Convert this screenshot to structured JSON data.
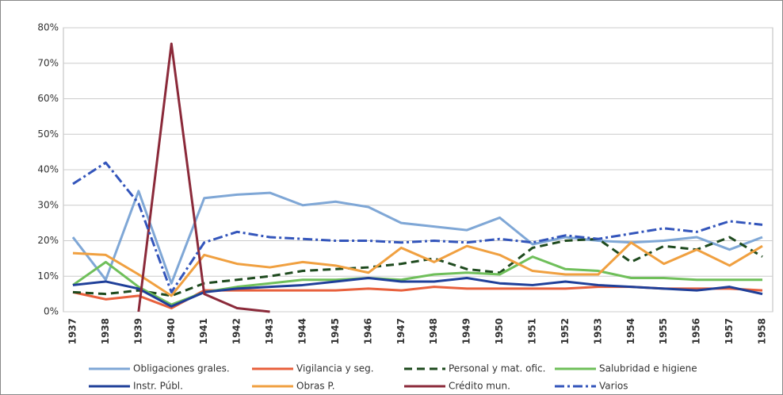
{
  "chart_data": {
    "type": "line",
    "categories": [
      "1937",
      "1938",
      "1939",
      "1940",
      "1941",
      "1942",
      "1943",
      "1944",
      "1945",
      "1946",
      "1947",
      "1948",
      "1949",
      "1950",
      "1951",
      "1952",
      "1953",
      "1954",
      "1955",
      "1956",
      "1957",
      "1958"
    ],
    "ylim": [
      0,
      80
    ],
    "yticks": [
      {
        "value": 0,
        "label": "0%"
      },
      {
        "value": 10,
        "label": "10%"
      },
      {
        "value": 20,
        "label": "20%"
      },
      {
        "value": 30,
        "label": "30%"
      },
      {
        "value": 40,
        "label": "40%"
      },
      {
        "value": 50,
        "label": "50%"
      },
      {
        "value": 60,
        "label": "60%"
      },
      {
        "value": 70,
        "label": "70%"
      },
      {
        "value": 80,
        "label": "80%"
      }
    ],
    "grid": true,
    "legend": "bottom",
    "series": [
      {
        "name": "Obligaciones grales.",
        "color": "#7fa7d6",
        "style": "solid",
        "values": [
          21,
          9,
          34,
          8,
          32,
          33,
          33.5,
          30,
          31,
          29.5,
          25,
          24,
          23,
          26.5,
          19,
          21,
          20,
          19.5,
          20,
          21,
          17.5,
          21
        ]
      },
      {
        "name": "Vigilancia y seg.",
        "color": "#e8603c",
        "style": "solid",
        "values": [
          5.5,
          3.5,
          4.5,
          1,
          6,
          6,
          6,
          6,
          6,
          6.5,
          6,
          7,
          6.5,
          6.5,
          6.5,
          6.5,
          7,
          7,
          6.5,
          6.5,
          6.5,
          6
        ]
      },
      {
        "name": "Personal y mat. ofic.",
        "color": "#1e4a1e",
        "style": "dashed",
        "values": [
          5.5,
          5,
          6,
          4.5,
          8,
          9,
          10,
          11.5,
          12,
          12.5,
          13.5,
          15,
          12,
          11,
          18,
          20,
          20.5,
          14,
          18.5,
          17.5,
          21,
          15.5
        ]
      },
      {
        "name": "Salubridad e higiene",
        "color": "#6fbf5a",
        "style": "solid",
        "values": [
          7.5,
          14,
          7,
          2,
          5.5,
          7,
          8,
          9,
          9,
          9.5,
          9,
          10.5,
          11,
          10.5,
          15.5,
          12,
          11.5,
          9.5,
          9.5,
          9,
          9,
          9
        ]
      },
      {
        "name": "Instr. Públ.",
        "color": "#1f3f99",
        "style": "solid",
        "values": [
          7.5,
          8.5,
          6.5,
          1.5,
          5.5,
          6.5,
          7,
          7.5,
          8.5,
          9.5,
          8.5,
          8.5,
          9.5,
          8,
          7.5,
          8.5,
          7.5,
          7,
          6.5,
          6,
          7,
          5
        ]
      },
      {
        "name": "Obras P.",
        "color": "#f0a040",
        "style": "solid",
        "values": [
          16.5,
          16,
          10.5,
          4.5,
          16,
          13.5,
          12.5,
          14,
          13,
          11,
          18,
          14,
          18.5,
          16,
          11.5,
          10.5,
          10.5,
          19.5,
          13.5,
          17.5,
          13,
          18.5
        ]
      },
      {
        "name": "Crédito mun.",
        "color": "#8b2a3a",
        "style": "solid",
        "values": [
          null,
          null,
          0,
          75.5,
          5,
          1,
          0,
          null,
          null,
          null,
          null,
          null,
          null,
          null,
          null,
          null,
          null,
          null,
          null,
          null,
          null,
          null
        ]
      },
      {
        "name": "Varios",
        "color": "#3355bb",
        "style": "dashdot",
        "values": [
          36,
          42,
          30.5,
          5.5,
          19.5,
          22.5,
          21,
          20.5,
          20,
          20,
          19.5,
          20,
          19.5,
          20.5,
          19.5,
          21.5,
          20.5,
          22,
          23.5,
          22.5,
          25.5,
          24.5
        ]
      }
    ]
  }
}
